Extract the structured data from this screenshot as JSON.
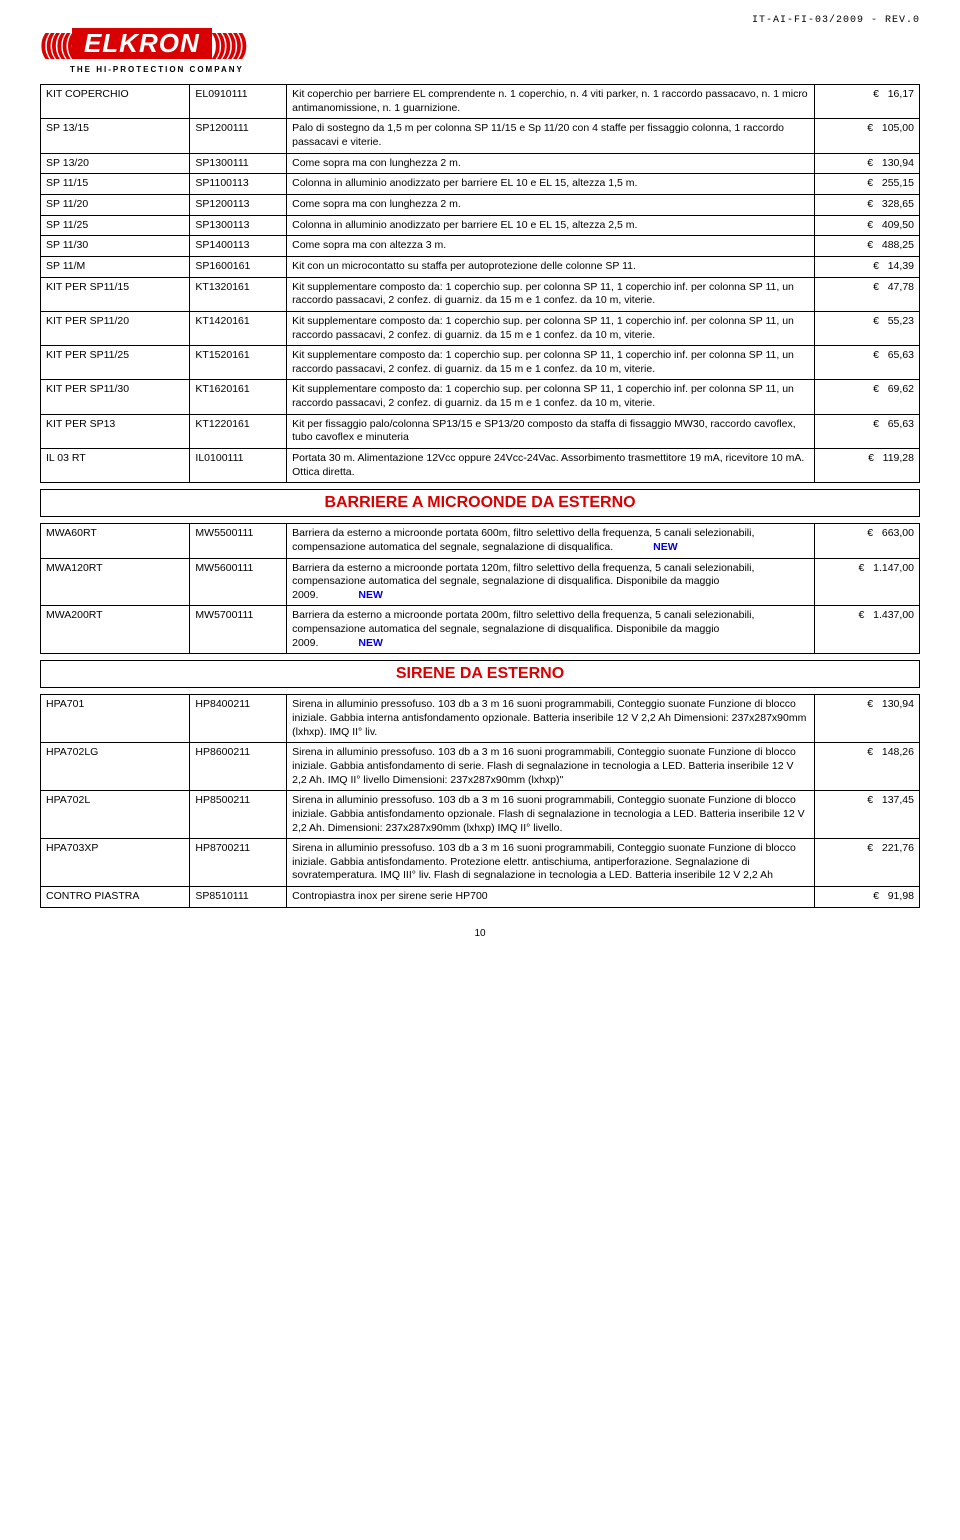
{
  "header": {
    "docRef": "IT-AI-FI-03/2009 - REV.0",
    "logo": "ELKRON",
    "tagline": "THE HI-PROTECTION COMPANY"
  },
  "euro": "€",
  "table1": [
    {
      "n": "KIT COPERCHIO",
      "c": "EL0910111",
      "d": "Kit coperchio per barriere EL comprendente n. 1 coperchio, n. 4 viti parker, n. 1 raccordo passacavo, n. 1 micro antimanomissione, n. 1 guarnizione.",
      "p": "16,17"
    },
    {
      "n": "SP 13/15",
      "c": "SP1200111",
      "d": "Palo di sostegno da 1,5 m per colonna SP 11/15 e Sp 11/20 con 4 staffe per fissaggio colonna, 1 raccordo passacavi e viterie.",
      "p": "105,00"
    },
    {
      "n": "SP 13/20",
      "c": "SP1300111",
      "d": "Come sopra ma con lunghezza 2 m.",
      "p": "130,94"
    },
    {
      "n": "SP 11/15",
      "c": "SP1100113",
      "d": "Colonna in alluminio anodizzato per barriere EL 10 e EL 15, altezza 1,5 m.",
      "p": "255,15"
    },
    {
      "n": "SP 11/20",
      "c": "SP1200113",
      "d": "Come sopra ma con lunghezza 2 m.",
      "p": "328,65"
    },
    {
      "n": "SP 11/25",
      "c": "SP1300113",
      "d": "Colonna in alluminio anodizzato per barriere EL 10 e EL 15, altezza 2,5 m.",
      "p": "409,50"
    },
    {
      "n": "SP 11/30",
      "c": "SP1400113",
      "d": "Come sopra ma con altezza 3 m.",
      "p": "488,25"
    },
    {
      "n": "SP 11/M",
      "c": "SP1600161",
      "d": "Kit con un microcontatto su staffa per autoprotezione delle colonne SP 11.",
      "p": "14,39"
    },
    {
      "n": "KIT PER SP11/15",
      "c": "KT1320161",
      "d": "Kit supplementare composto da: 1 coperchio sup. per colonna SP 11, 1 coperchio inf. per colonna SP 11, un raccordo passacavi, 2 confez. di guarniz. da 15 m e 1 confez. da 10 m, viterie.",
      "p": "47,78"
    },
    {
      "n": "KIT PER SP11/20",
      "c": "KT1420161",
      "d": "Kit supplementare composto da: 1 coperchio sup. per colonna SP 11, 1 coperchio inf. per colonna SP 11, un raccordo passacavi, 2 confez. di guarniz. da 15 m e 1 confez. da 10 m, viterie.",
      "p": "55,23"
    },
    {
      "n": "KIT PER SP11/25",
      "c": "KT1520161",
      "d": "Kit supplementare composto da: 1 coperchio sup. per colonna SP 11, 1 coperchio inf. per colonna SP 11, un raccordo passacavi, 2 confez. di guarniz. da 15 m e 1 confez. da 10 m, viterie.",
      "p": "65,63"
    },
    {
      "n": "KIT PER SP11/30",
      "c": "KT1620161",
      "d": "Kit supplementare composto da: 1 coperchio sup. per colonna SP 11, 1 coperchio inf. per colonna SP 11, un raccordo passacavi, 2 confez. di guarniz. da 15 m e 1 confez. da 10 m, viterie.",
      "p": "69,62"
    },
    {
      "n": "KIT PER SP13",
      "c": "KT1220161",
      "d": "Kit per fissaggio palo/colonna SP13/15 e SP13/20 composto da staffa di fissaggio MW30, raccordo cavoflex, tubo cavoflex e minuteria",
      "p": "65,63"
    },
    {
      "n": "IL 03 RT",
      "c": "IL0100111",
      "d": "Portata 30 m. Alimentazione 12Vcc oppure 24Vcc-24Vac. Assorbimento trasmettitore 19 mA, ricevitore 10 mA. Ottica diretta.",
      "p": "119,28"
    }
  ],
  "section2": {
    "title": "BARRIERE A MICROONDE DA ESTERNO",
    "rows": [
      {
        "n": "MWA60RT",
        "c": "MW5500111",
        "d": "Barriera da esterno a microonde portata 600m, filtro selettivo della frequenza, 5 canali selezionabili, compensazione automatica del segnale, segnalazione di disqualifica.",
        "new": "NEW",
        "p": "663,00"
      },
      {
        "n": "MWA120RT",
        "c": "MW5600111",
        "d": "Barriera da esterno a microonde portata 120m, filtro selettivo della frequenza, 5 canali selezionabili, compensazione automatica del segnale, segnalazione di disqualifica. Disponibile da maggio 2009.",
        "new": "NEW",
        "p": "1.147,00"
      },
      {
        "n": "MWA200RT",
        "c": "MW5700111",
        "d": "Barriera da esterno a microonde portata 200m, filtro selettivo della frequenza, 5 canali selezionabili, compensazione automatica del segnale, segnalazione di disqualifica. Disponibile da maggio 2009.",
        "new": "NEW",
        "p": "1.437,00"
      }
    ]
  },
  "section3": {
    "title": "SIRENE DA ESTERNO",
    "rows": [
      {
        "n": "HPA701",
        "c": "HP8400211",
        "d": "Sirena in alluminio pressofuso. 103 db a 3 m 16 suoni programmabili, Conteggio suonate Funzione di blocco iniziale. Gabbia interna antisfondamento opzionale. Batteria inseribile 12 V 2,2 Ah Dimensioni: 237x287x90mm (lxhxp). IMQ II° liv.",
        "p": "130,94"
      },
      {
        "n": "HPA702LG",
        "c": "HP8600211",
        "d": "Sirena in alluminio pressofuso. 103 db a 3 m 16 suoni programmabili, Conteggio suonate Funzione di blocco iniziale. Gabbia antisfondamento di serie. Flash di segnalazione in tecnologia a LED. Batteria inseribile 12 V 2,2 Ah. IMQ II° livello Dimensioni: 237x287x90mm (lxhxp)\"",
        "p": "148,26"
      },
      {
        "n": "HPA702L",
        "c": "HP8500211",
        "d": "Sirena in alluminio pressofuso. 103 db a 3 m 16 suoni programmabili, Conteggio suonate Funzione di blocco iniziale. Gabbia antisfondamento opzionale. Flash di segnalazione in tecnologia a LED. Batteria inseribile 12 V 2,2 Ah. Dimensioni: 237x287x90mm (lxhxp) IMQ II° livello.",
        "p": "137,45"
      },
      {
        "n": "HPA703XP",
        "c": "HP8700211",
        "d": "Sirena in alluminio pressofuso. 103 db a 3 m 16 suoni programmabili, Conteggio suonate Funzione di blocco iniziale. Gabbia antisfondamento. Protezione elettr. antischiuma, antiperforazione. Segnalazione di sovratemperatura. IMQ III° liv. Flash di segnalazione in tecnologia a LED. Batteria inseribile 12 V 2,2 Ah",
        "p": "221,76"
      },
      {
        "n": "CONTRO PIASTRA",
        "c": "SP8510111",
        "d": "Contropiastra inox per sirene serie HP700",
        "p": "91,98"
      }
    ]
  },
  "pageNum": "10"
}
